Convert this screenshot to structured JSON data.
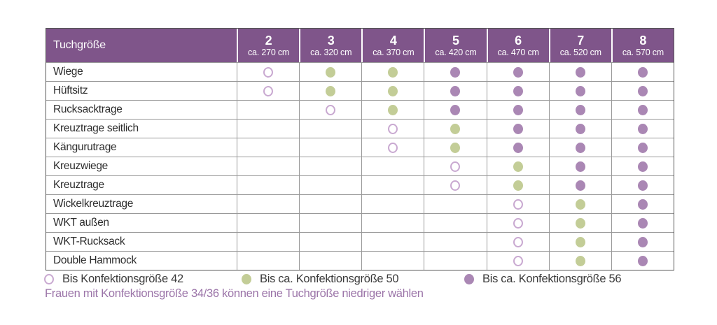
{
  "colors": {
    "header_bg": "#7f558a",
    "dot_green": "#c3cd97",
    "dot_purple": "#aa87b4",
    "dot_outline_stroke": "#c9a9d1",
    "note_text": "#9b74a8"
  },
  "table": {
    "header_label": "Tuchgröße",
    "columns": [
      {
        "size": "2",
        "length": "ca. 270 cm"
      },
      {
        "size": "3",
        "length": "ca. 320 cm"
      },
      {
        "size": "4",
        "length": "ca. 370 cm"
      },
      {
        "size": "5",
        "length": "ca. 420 cm"
      },
      {
        "size": "6",
        "length": "ca. 470 cm"
      },
      {
        "size": "7",
        "length": "ca. 520 cm"
      },
      {
        "size": "8",
        "length": "ca. 570 cm"
      }
    ],
    "rows": [
      {
        "label": "Wiege",
        "cells": [
          "outline",
          "green",
          "green",
          "purple",
          "purple",
          "purple",
          "purple"
        ]
      },
      {
        "label": "Hüftsitz",
        "cells": [
          "outline",
          "green",
          "green",
          "purple",
          "purple",
          "purple",
          "purple"
        ]
      },
      {
        "label": "Rucksacktrage",
        "cells": [
          "none",
          "outline",
          "green",
          "purple",
          "purple",
          "purple",
          "purple"
        ]
      },
      {
        "label": "Kreuztrage seitlich",
        "cells": [
          "none",
          "none",
          "outline",
          "green",
          "purple",
          "purple",
          "purple"
        ]
      },
      {
        "label": "Kängurutrage",
        "cells": [
          "none",
          "none",
          "outline",
          "green",
          "purple",
          "purple",
          "purple"
        ]
      },
      {
        "label": "Kreuzwiege",
        "cells": [
          "none",
          "none",
          "none",
          "outline",
          "green",
          "purple",
          "purple"
        ]
      },
      {
        "label": "Kreuztrage",
        "cells": [
          "none",
          "none",
          "none",
          "outline",
          "green",
          "purple",
          "purple"
        ]
      },
      {
        "label": "Wickelkreuztrage",
        "cells": [
          "none",
          "none",
          "none",
          "none",
          "outline",
          "green",
          "purple"
        ]
      },
      {
        "label": "WKT außen",
        "cells": [
          "none",
          "none",
          "none",
          "none",
          "outline",
          "green",
          "purple"
        ]
      },
      {
        "label": "WKT-Rucksack",
        "cells": [
          "none",
          "none",
          "none",
          "none",
          "outline",
          "green",
          "purple"
        ]
      },
      {
        "label": "Double Hammock",
        "cells": [
          "none",
          "none",
          "none",
          "none",
          "outline",
          "green",
          "purple"
        ]
      }
    ]
  },
  "legend": {
    "items": [
      {
        "symbol": "outline",
        "label": "Bis Konfektionsgröße 42"
      },
      {
        "symbol": "green",
        "label": "Bis ca. Konfektionsgröße 50"
      },
      {
        "symbol": "purple",
        "label": "Bis ca. Konfektionsgröße 56"
      }
    ],
    "note": "Frauen mit Konfektionsgröße 34/36 können eine Tuchgröße niedriger wählen"
  },
  "chart_data": {
    "type": "table",
    "title": "Tuchgröße",
    "columns": [
      "2 (ca. 270 cm)",
      "3 (ca. 320 cm)",
      "4 (ca. 370 cm)",
      "5 (ca. 420 cm)",
      "6 (ca. 470 cm)",
      "7 (ca. 520 cm)",
      "8 (ca. 570 cm)"
    ],
    "row_labels": [
      "Wiege",
      "Hüftsitz",
      "Rucksacktrage",
      "Kreuztrage seitlich",
      "Kängurutrage",
      "Kreuzwiege",
      "Kreuztrage",
      "Wickelkreuztrage",
      "WKT außen",
      "WKT-Rucksack",
      "Double Hammock"
    ],
    "matrix": [
      [
        "outline",
        "green",
        "green",
        "purple",
        "purple",
        "purple",
        "purple"
      ],
      [
        "outline",
        "green",
        "green",
        "purple",
        "purple",
        "purple",
        "purple"
      ],
      [
        "none",
        "outline",
        "green",
        "purple",
        "purple",
        "purple",
        "purple"
      ],
      [
        "none",
        "none",
        "outline",
        "green",
        "purple",
        "purple",
        "purple"
      ],
      [
        "none",
        "none",
        "outline",
        "green",
        "purple",
        "purple",
        "purple"
      ],
      [
        "none",
        "none",
        "none",
        "outline",
        "green",
        "purple",
        "purple"
      ],
      [
        "none",
        "none",
        "none",
        "outline",
        "green",
        "purple",
        "purple"
      ],
      [
        "none",
        "none",
        "none",
        "none",
        "outline",
        "green",
        "purple"
      ],
      [
        "none",
        "none",
        "none",
        "none",
        "outline",
        "green",
        "purple"
      ],
      [
        "none",
        "none",
        "none",
        "none",
        "outline",
        "green",
        "purple"
      ],
      [
        "none",
        "none",
        "none",
        "none",
        "outline",
        "green",
        "purple"
      ]
    ],
    "marker_legend": {
      "outline": "Bis Konfektionsgröße 42",
      "green": "Bis ca. Konfektionsgröße 50",
      "purple": "Bis ca. Konfektionsgröße 56"
    },
    "footnote": "Frauen mit Konfektionsgröße 34/36 können eine Tuchgröße niedriger wählen"
  }
}
